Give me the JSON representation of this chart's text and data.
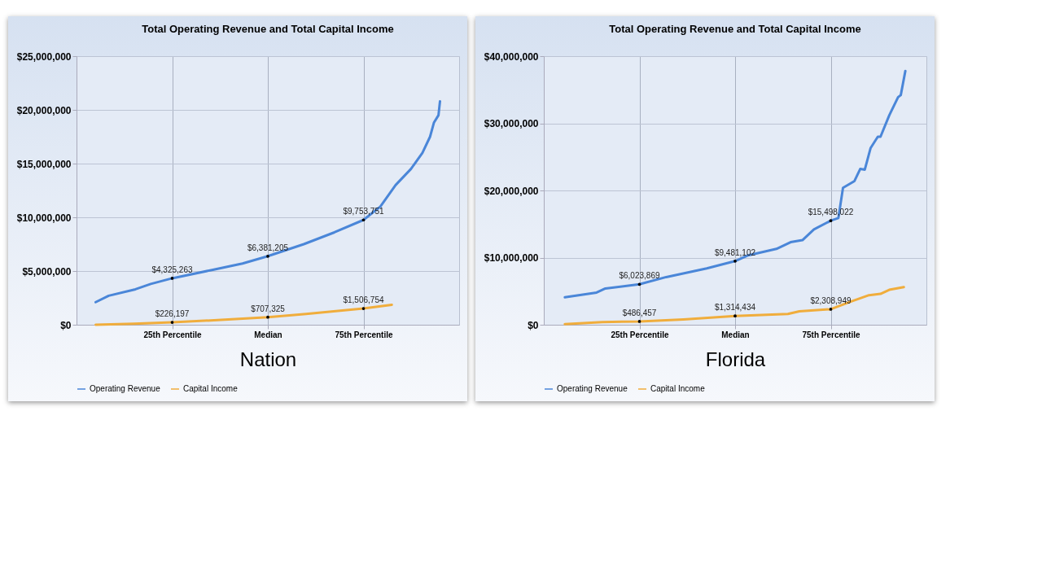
{
  "chart_data": [
    {
      "type": "line",
      "title": "Total Operating Revenue and Total Capital Income",
      "xlabel": "Nation",
      "xlim": [
        0,
        100
      ],
      "xticks": [
        {
          "value": 25,
          "label": "25th Percentile"
        },
        {
          "value": 50,
          "label": "Median"
        },
        {
          "value": 75,
          "label": "75th Percentile"
        }
      ],
      "ylim": [
        0,
        25000000
      ],
      "yticks": [
        {
          "value": 0,
          "label": "$0"
        },
        {
          "value": 5000000,
          "label": "$5,000,000"
        },
        {
          "value": 10000000,
          "label": "$10,000,000"
        },
        {
          "value": 15000000,
          "label": "$15,000,000"
        },
        {
          "value": 20000000,
          "label": "$20,000,000"
        },
        {
          "value": 25000000,
          "label": "$25,000,000"
        }
      ],
      "grid": true,
      "legend": "bottom",
      "line_style": "solid",
      "series": [
        {
          "name": "Operating Revenue",
          "color": "#4a86d8",
          "x": [
            5,
            8.4,
            15.4,
            19.4,
            25,
            35.4,
            43.4,
            50,
            59.4,
            67.4,
            75,
            79.4,
            83.4,
            87.4,
            90.4,
            92.4,
            93.4,
            94.6,
            95
          ],
          "values": [
            2100000,
            2700000,
            3300000,
            3800000,
            4325263,
            5100000,
            5700000,
            6381205,
            7500000,
            8600000,
            9753751,
            11000000,
            13000000,
            14500000,
            16000000,
            17500000,
            18800000,
            19500000,
            20800000
          ]
        },
        {
          "name": "Capital Income",
          "color": "#f0ad3c",
          "x": [
            5,
            15,
            25,
            35,
            50,
            60,
            75,
            82.4
          ],
          "values": [
            0,
            100000,
            226197,
            400000,
            707325,
            1000000,
            1506754,
            1860000
          ]
        }
      ],
      "annotations": [
        {
          "text": "$4,325,263",
          "x": 25,
          "y": 4325263
        },
        {
          "text": "$6,381,205",
          "x": 50,
          "y": 6381205
        },
        {
          "text": "$9,753,751",
          "x": 75,
          "y": 9753751
        },
        {
          "text": "$226,197",
          "x": 25,
          "y": 226197
        },
        {
          "text": "$707,325",
          "x": 50,
          "y": 707325
        },
        {
          "text": "$1,506,754",
          "x": 75,
          "y": 1506754
        }
      ]
    },
    {
      "type": "line",
      "title": "Total Operating Revenue and Total Capital Income",
      "xlabel": "Florida",
      "xlim": [
        0,
        100
      ],
      "xticks": [
        {
          "value": 25,
          "label": "25th Percentile"
        },
        {
          "value": 50,
          "label": "Median"
        },
        {
          "value": 75,
          "label": "75th Percentile"
        }
      ],
      "ylim": [
        0,
        40000000
      ],
      "yticks": [
        {
          "value": 0,
          "label": "$0"
        },
        {
          "value": 10000000,
          "label": "$10,000,000"
        },
        {
          "value": 20000000,
          "label": "$20,000,000"
        },
        {
          "value": 30000000,
          "label": "$30,000,000"
        },
        {
          "value": 40000000,
          "label": "$40,000,000"
        }
      ],
      "grid": true,
      "legend": "bottom",
      "line_style": "solid",
      "series": [
        {
          "name": "Operating Revenue",
          "color": "#4a86d8",
          "x": [
            5.5,
            13.8,
            16.1,
            25,
            32,
            42.6,
            50,
            53.2,
            60.8,
            64.5,
            67.6,
            70.6,
            75,
            77,
            78.2,
            81.2,
            82.7,
            83.9,
            85.4,
            87.3,
            88,
            90.3,
            92.6,
            93.3,
            94.5
          ],
          "values": [
            4100000,
            4800000,
            5400000,
            6023869,
            7100000,
            8400000,
            9481102,
            10300000,
            11300000,
            12300000,
            12600000,
            14200000,
            15498022,
            15900000,
            20400000,
            21400000,
            23200000,
            23100000,
            26300000,
            28000000,
            28000000,
            31200000,
            33900000,
            34200000,
            37800000
          ]
        },
        {
          "name": "Capital Income",
          "color": "#f0ad3c",
          "x": [
            5.5,
            15.3,
            25,
            36.5,
            50,
            63.8,
            66.8,
            75,
            80.5,
            85,
            88,
            90.3,
            94.1
          ],
          "values": [
            100000,
            400000,
            486457,
            800000,
            1314434,
            1600000,
            2000000,
            2308949,
            3500000,
            4400000,
            4600000,
            5200000,
            5600000
          ]
        }
      ],
      "annotations": [
        {
          "text": "$6,023,869",
          "x": 25,
          "y": 6023869
        },
        {
          "text": "$9,481,102",
          "x": 50,
          "y": 9481102
        },
        {
          "text": "$15,498,022",
          "x": 75,
          "y": 15498022
        },
        {
          "text": "$486,457",
          "x": 25,
          "y": 486457
        },
        {
          "text": "$1,314,434",
          "x": 50,
          "y": 1314434
        },
        {
          "text": "$2,308,949",
          "x": 75,
          "y": 2308949
        }
      ]
    }
  ]
}
